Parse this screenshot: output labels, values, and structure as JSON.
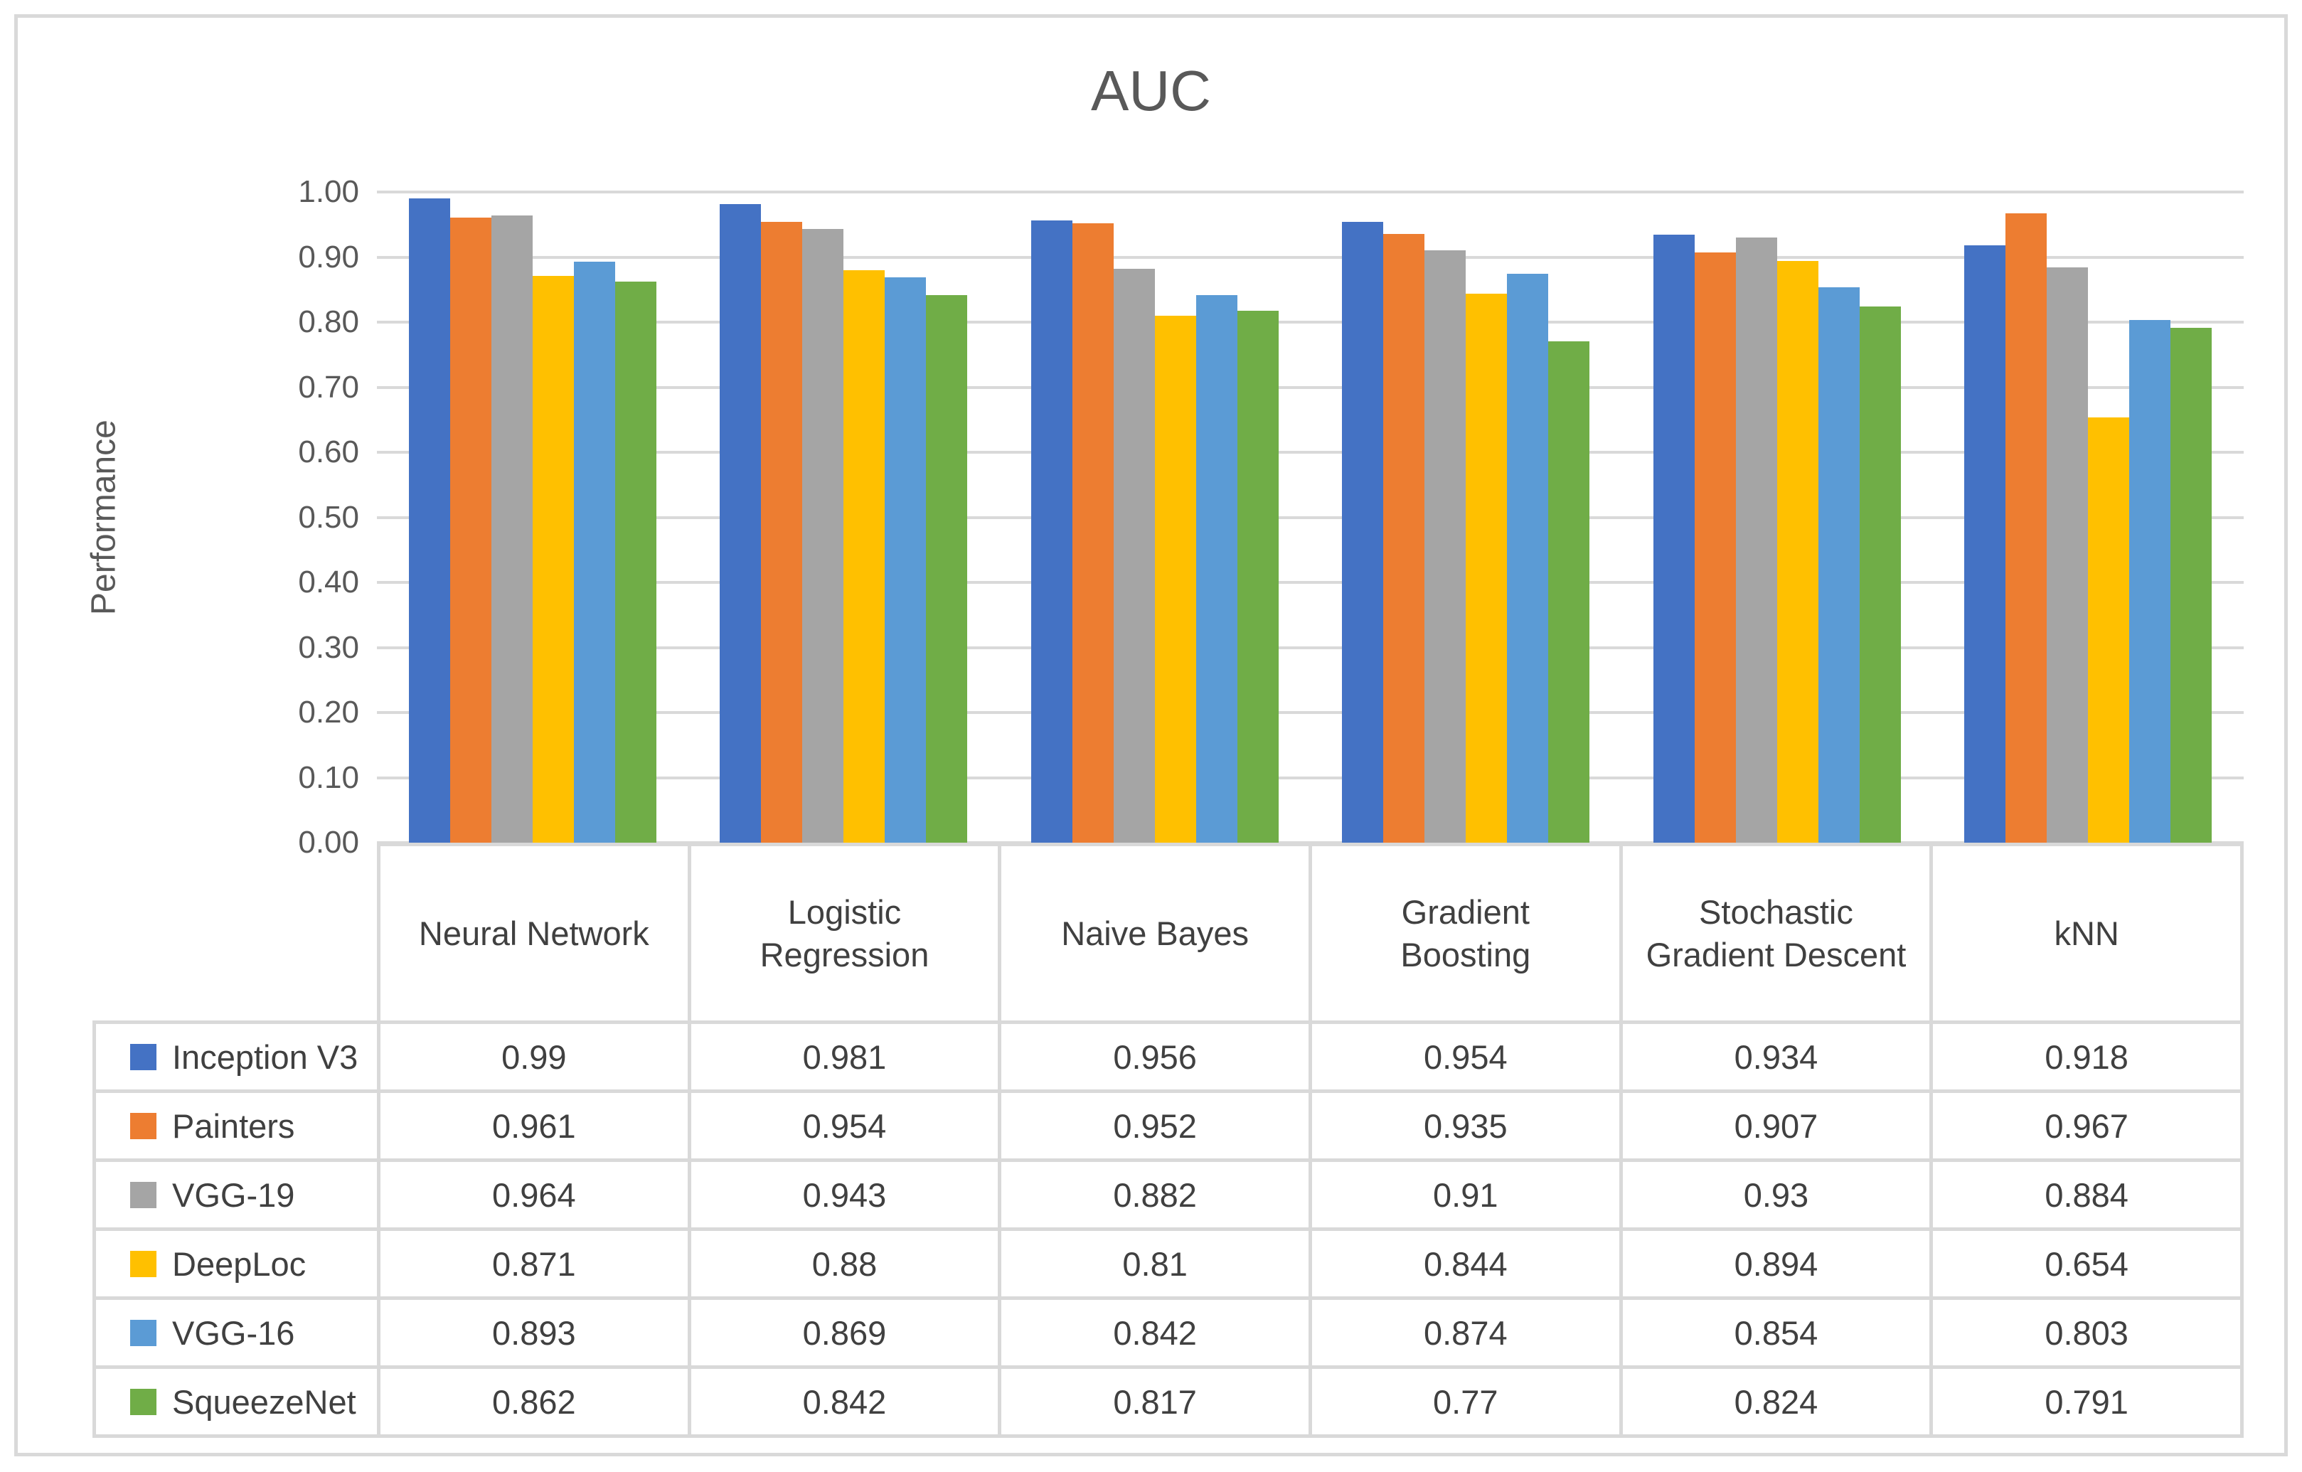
{
  "page": {
    "background": "#ffffff",
    "border_color": "#d9d9d9"
  },
  "chart_data": {
    "type": "bar",
    "title": "AUC",
    "ylabel": "Performance",
    "categories": [
      "Neural Network",
      "Logistic Regression",
      "Naive Bayes",
      "Gradient Boosting",
      "Stochastic Gradient Descent",
      "kNN"
    ],
    "series": [
      {
        "name": "Inception V3",
        "color": "#4472C4",
        "values": [
          0.99,
          0.981,
          0.956,
          0.954,
          0.934,
          0.918
        ]
      },
      {
        "name": "Painters",
        "color": "#ED7D31",
        "values": [
          0.961,
          0.954,
          0.952,
          0.935,
          0.907,
          0.967
        ]
      },
      {
        "name": "VGG-19",
        "color": "#A5A5A5",
        "values": [
          0.964,
          0.943,
          0.882,
          0.91,
          0.93,
          0.884
        ]
      },
      {
        "name": "DeepLoc",
        "color": "#FFC000",
        "values": [
          0.871,
          0.88,
          0.81,
          0.844,
          0.894,
          0.654
        ]
      },
      {
        "name": "VGG-16",
        "color": "#5B9BD5",
        "values": [
          0.893,
          0.869,
          0.842,
          0.874,
          0.854,
          0.803
        ]
      },
      {
        "name": "SqueezeNet",
        "color": "#70AD47",
        "values": [
          0.862,
          0.842,
          0.817,
          0.77,
          0.824,
          0.791
        ]
      }
    ],
    "ylim": [
      0.0,
      1.0
    ],
    "ytick_labels": [
      "1.00",
      "0.90",
      "0.80",
      "0.70",
      "0.60",
      "0.50",
      "0.40",
      "0.30",
      "0.20",
      "0.10",
      "0.00"
    ],
    "grid": true,
    "gridline_color": "#d9d9d9",
    "axis_text_color": "#595959",
    "table_text_color": "#404040",
    "legend_position": "table-rows-left"
  }
}
